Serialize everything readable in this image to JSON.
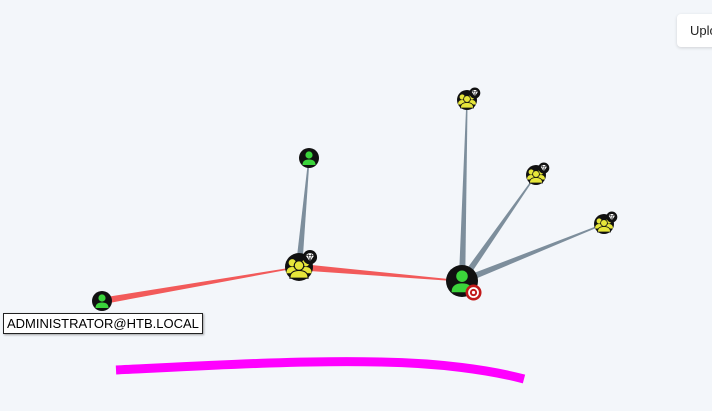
{
  "toolbar": {
    "upload_label": "Upload"
  },
  "graph": {
    "nodes": [
      {
        "id": "administrator",
        "kind": "user",
        "icon": "user-icon",
        "label": "ADMINISTRATOR@HTB.LOCAL"
      },
      {
        "id": "group-hub",
        "kind": "group",
        "icon": "group-icon",
        "badge": "gem-badge-icon"
      },
      {
        "id": "user-top",
        "kind": "user",
        "icon": "user-icon"
      },
      {
        "id": "target-user",
        "kind": "user",
        "icon": "user-icon",
        "badge": "target-badge-icon"
      },
      {
        "id": "group-top",
        "kind": "group",
        "icon": "group-icon",
        "badge": "gem-badge-icon"
      },
      {
        "id": "group-mid",
        "kind": "group",
        "icon": "group-icon",
        "badge": "gem-badge-icon"
      },
      {
        "id": "group-right",
        "kind": "group",
        "icon": "group-icon",
        "badge": "gem-badge-icon"
      }
    ],
    "edges": [
      {
        "from": "administrator",
        "to": "group-hub",
        "kind": "highlight"
      },
      {
        "from": "group-hub",
        "to": "target-user",
        "kind": "highlight"
      },
      {
        "from": "group-hub",
        "to": "user-top",
        "kind": "membership"
      },
      {
        "from": "target-user",
        "to": "group-top",
        "kind": "membership"
      },
      {
        "from": "target-user",
        "to": "group-mid",
        "kind": "membership"
      },
      {
        "from": "target-user",
        "to": "group-right",
        "kind": "membership"
      }
    ]
  },
  "colors": {
    "background": "#f3f6fa",
    "highlight_edge": "#f25a5a",
    "membership_edge": "#7d8e9c",
    "user_fill": "#3bd43b",
    "group_fill": "#e6e63a",
    "node_ring": "#111111",
    "target_badge": "#c21a1a",
    "annotation_stroke": "#ff00ff"
  }
}
